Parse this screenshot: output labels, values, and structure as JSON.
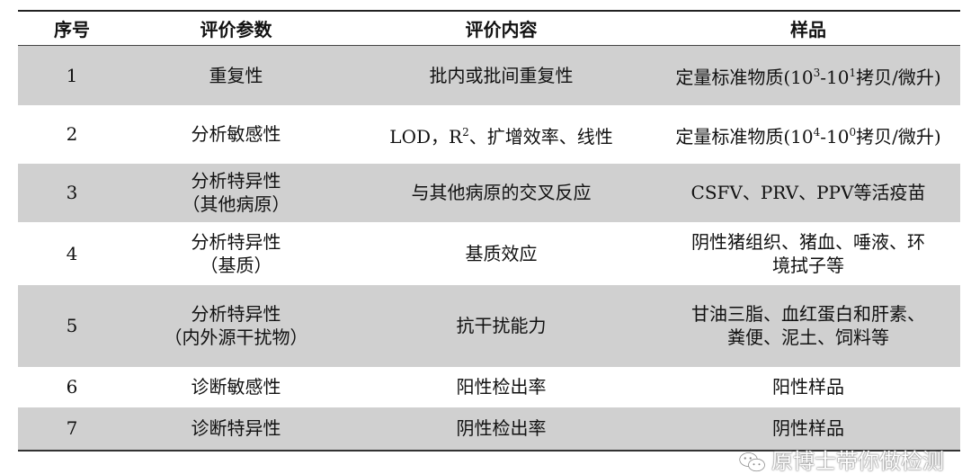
{
  "headers": [
    "序号",
    "评价参数",
    "评价内容",
    "样品"
  ],
  "rows": [
    {
      "no": "1",
      "param": [
        "重复性"
      ],
      "content": "批内或批间重复性",
      "sample_pre": "定量标准物质(10",
      "sup1": "3",
      "sample_mid": "-10",
      "sup2": "1",
      "sample_post": "拷贝/微升)",
      "shaded": true
    },
    {
      "no": "2",
      "param": [
        "分析敏感性"
      ],
      "content_pre": "LOD，R",
      "content_sup": "2",
      "content_post": "、扩增效率、线性",
      "sample_pre": "定量标准物质(10",
      "sup1": "4",
      "sample_mid": "-10",
      "sup2": "0",
      "sample_post": "拷贝/微升)",
      "shaded": false
    },
    {
      "no": "3",
      "param": [
        "分析特异性",
        "（其他病原）"
      ],
      "content": "与其他病原的交叉反应",
      "sample": [
        "CSFV、PRV、PPV等活疫苗"
      ],
      "shaded": true
    },
    {
      "no": "4",
      "param": [
        "分析特异性",
        "（基质）"
      ],
      "content": "基质效应",
      "sample": [
        "阴性猪组织、猪血、唾液、环",
        "境拭子等"
      ],
      "shaded": false
    },
    {
      "no": "5",
      "param": [
        "分析特异性",
        "（内外源干扰物）"
      ],
      "content": "抗干扰能力",
      "sample": [
        "甘油三脂、血红蛋白和肝素、",
        "粪便、泥土、饲料等"
      ],
      "shaded": true
    },
    {
      "no": "6",
      "param": [
        "诊断敏感性"
      ],
      "content": "阳性检出率",
      "sample": [
        "阳性样品"
      ],
      "shaded": false
    },
    {
      "no": "7",
      "param": [
        "诊断特异性"
      ],
      "content": "阴性检出率",
      "sample": [
        "阴性样品"
      ],
      "shaded": true
    }
  ],
  "watermark": {
    "icon": "wechat-icon",
    "text": "原博士带你做检测"
  },
  "colors": {
    "shade": "#d0d0d0"
  }
}
